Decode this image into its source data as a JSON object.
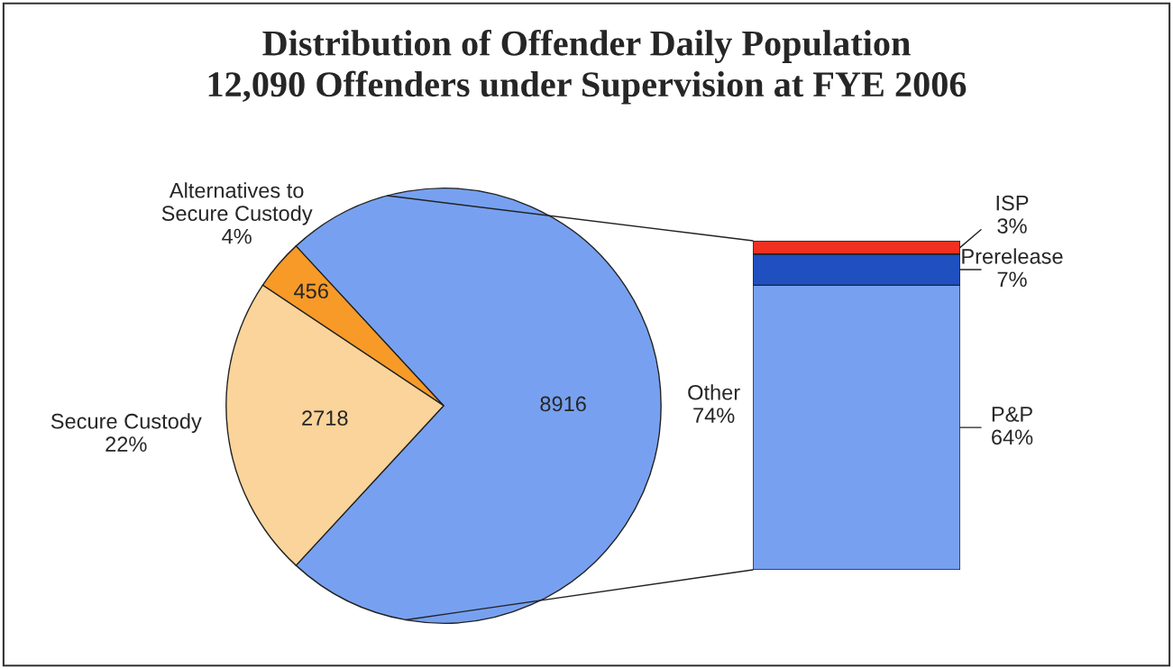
{
  "chart_data": [
    {
      "type": "pie",
      "title": "Distribution of Offender Daily Population\n12,090 Offenders under Supervision at FYE 2006",
      "categories": [
        "Other",
        "Alternatives to Secure Custody",
        "Secure Custody"
      ],
      "values": [
        8916,
        456,
        2718
      ],
      "annotations": [
        "74%",
        "4%",
        "22%"
      ],
      "colors": [
        "#77a1f0",
        "#f79a28",
        "#fad49a"
      ],
      "data_labels": true
    },
    {
      "type": "bar",
      "stacked": true,
      "tick_labels": false,
      "categories": [
        null
      ],
      "series": [
        {
          "name": "P&P",
          "color": "#77a1f0",
          "values": [
            64
          ],
          "value_labels": [
            "64%"
          ]
        },
        {
          "name": "Prerelease",
          "color": "#2050c0",
          "values": [
            7
          ],
          "value_labels": [
            "7%"
          ]
        },
        {
          "name": "ISP",
          "color": "#f03020",
          "values": [
            3
          ],
          "value_labels": [
            "3%"
          ]
        }
      ]
    }
  ]
}
